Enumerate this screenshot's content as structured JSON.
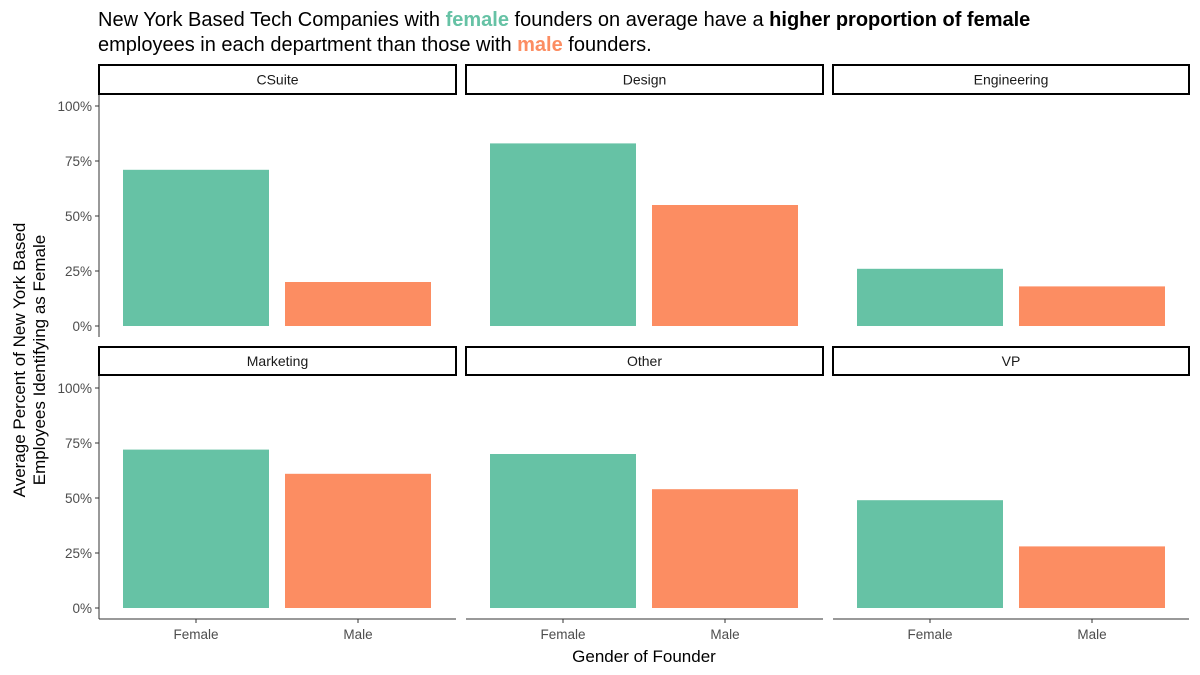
{
  "title": {
    "line1_parts": [
      {
        "text": "New York Based Tech Companies with ",
        "style": "normal"
      },
      {
        "text": "female",
        "style": "female"
      },
      {
        "text": " founders on average have a ",
        "style": "normal"
      },
      {
        "text": "higher proportion of female",
        "style": "bold"
      }
    ],
    "line2_parts": [
      {
        "text": "employees in each department than those with ",
        "style": "normal"
      },
      {
        "text": "male",
        "style": "male"
      },
      {
        "text": " founders.",
        "style": "normal"
      }
    ]
  },
  "colors": {
    "female": "#66c2a5",
    "male": "#fc8d62",
    "strip_border": "#000000",
    "axis": "#333333"
  },
  "chart_data": {
    "type": "bar",
    "facet_by": "department",
    "categories": [
      "Female",
      "Male"
    ],
    "xlabel": "Gender of Founder",
    "ylabel_lines": [
      "Average Percent of New York Based",
      "Employees Identifying as Female"
    ],
    "ylim": [
      0,
      1
    ],
    "y_ticks": [
      0,
      0.25,
      0.5,
      0.75,
      1.0
    ],
    "y_tick_labels": [
      "0%",
      "25%",
      "50%",
      "75%",
      "100%"
    ],
    "grid": false,
    "legend": "none",
    "facets": [
      {
        "name": "CSuite",
        "values": [
          0.71,
          0.2
        ]
      },
      {
        "name": "Design",
        "values": [
          0.83,
          0.55
        ]
      },
      {
        "name": "Engineering",
        "values": [
          0.26,
          0.18
        ]
      },
      {
        "name": "Marketing",
        "values": [
          0.72,
          0.61
        ]
      },
      {
        "name": "Other",
        "values": [
          0.7,
          0.54
        ]
      },
      {
        "name": "VP",
        "values": [
          0.49,
          0.28
        ]
      }
    ]
  }
}
